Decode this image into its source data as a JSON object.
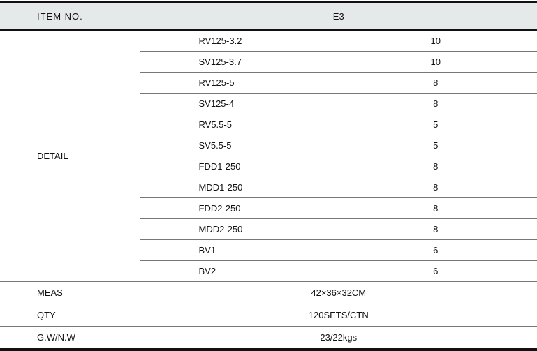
{
  "header": {
    "item_no_label": "ITEM NO.",
    "item_no_value": "E3"
  },
  "detail": {
    "label": "DETAIL",
    "rows": [
      {
        "part": "RV125-3.2",
        "qty": "10"
      },
      {
        "part": "SV125-3.7",
        "qty": "10"
      },
      {
        "part": "RV125-5",
        "qty": "8"
      },
      {
        "part": "SV125-4",
        "qty": "8"
      },
      {
        "part": "RV5.5-5",
        "qty": "5"
      },
      {
        "part": "SV5.5-5",
        "qty": "5"
      },
      {
        "part": "FDD1-250",
        "qty": "8"
      },
      {
        "part": "MDD1-250",
        "qty": "8"
      },
      {
        "part": "FDD2-250",
        "qty": "8"
      },
      {
        "part": "MDD2-250",
        "qty": "8"
      },
      {
        "part": "BV1",
        "qty": "6"
      },
      {
        "part": "BV2",
        "qty": "6"
      }
    ]
  },
  "meas": {
    "label": "MEAS",
    "value": "42×36×32CM"
  },
  "qty": {
    "label": "QTY",
    "value": "120SETS/CTN"
  },
  "weight": {
    "label": "G.W/N.W",
    "value": "23/22kgs"
  }
}
